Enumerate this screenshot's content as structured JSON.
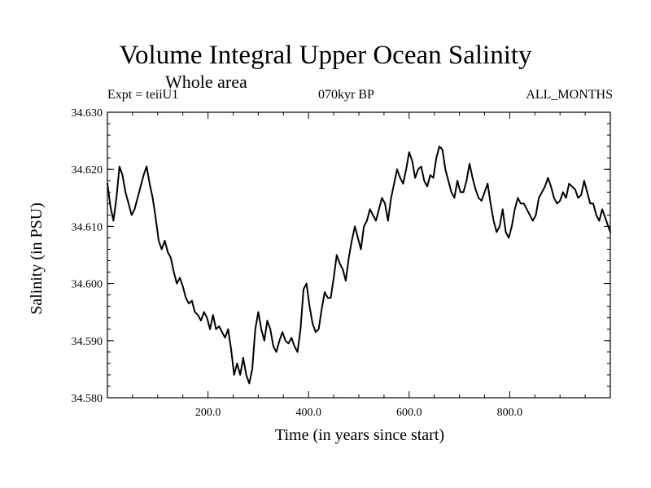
{
  "chart_data": {
    "type": "line",
    "title": "Volume Integral Upper Ocean Salinity",
    "subtitle": "Whole area",
    "expt_label": "Expt = teiiU1",
    "period_label": "070kyr BP",
    "months_label": "ALL_MONTHS",
    "xlabel": "Time (in years since start)",
    "ylabel": "Salinity (in PSU)",
    "xlim": [
      0,
      1000
    ],
    "ylim": [
      34.58,
      34.63
    ],
    "x_ticks": [
      200,
      400,
      600,
      800
    ],
    "x_tick_labels": [
      "200.0",
      "400.0",
      "600.0",
      "800.0"
    ],
    "y_ticks": [
      34.58,
      34.59,
      34.6,
      34.61,
      34.62,
      34.63
    ],
    "y_tick_labels": [
      "34.580",
      "34.590",
      "34.600",
      "34.610",
      "34.620",
      "34.630"
    ],
    "grid": false,
    "line_color": "#000000",
    "series": [
      {
        "x": [
          0,
          6,
          12,
          18,
          24,
          30,
          36,
          42,
          48,
          54,
          60,
          66,
          72,
          78,
          84,
          90,
          96,
          102,
          108,
          114,
          120,
          126,
          132,
          138,
          144,
          150,
          156,
          162,
          168,
          174,
          180,
          186,
          192,
          198,
          204,
          210,
          216,
          222,
          228,
          234,
          240,
          246,
          252,
          258,
          264,
          270,
          276,
          282,
          288,
          294,
          300,
          306,
          312,
          318,
          324,
          330,
          336,
          342,
          348,
          354,
          360,
          366,
          372,
          378,
          384,
          390,
          396,
          402,
          408,
          414,
          420,
          426,
          432,
          438,
          444,
          450,
          456,
          462,
          468,
          474,
          480,
          486,
          492,
          498,
          504,
          510,
          516,
          522,
          528,
          534,
          540,
          546,
          552,
          558,
          564,
          570,
          576,
          582,
          588,
          594,
          600,
          606,
          612,
          618,
          624,
          630,
          636,
          642,
          648,
          654,
          660,
          666,
          672,
          678,
          684,
          690,
          696,
          702,
          708,
          714,
          720,
          726,
          732,
          738,
          744,
          750,
          756,
          762,
          768,
          774,
          780,
          786,
          792,
          798,
          804,
          810,
          816,
          822,
          828,
          834,
          840,
          846,
          852,
          858,
          864,
          870,
          876,
          882,
          888,
          894,
          900,
          906,
          912,
          918,
          924,
          930,
          936,
          942,
          948,
          954,
          960,
          966,
          972,
          978,
          984,
          990,
          996,
          1000
        ],
        "values": [
          34.6175,
          34.6135,
          34.611,
          34.615,
          34.6205,
          34.619,
          34.616,
          34.614,
          34.612,
          34.613,
          34.615,
          34.617,
          34.619,
          34.6205,
          34.6175,
          34.615,
          34.6115,
          34.6075,
          34.606,
          34.6075,
          34.6055,
          34.6045,
          34.602,
          34.6,
          34.601,
          34.5995,
          34.5975,
          34.5965,
          34.597,
          34.595,
          34.5945,
          34.5935,
          34.595,
          34.594,
          34.592,
          34.5945,
          34.592,
          34.5925,
          34.5915,
          34.5905,
          34.592,
          34.5885,
          34.584,
          34.586,
          34.584,
          34.587,
          34.584,
          34.5825,
          34.585,
          34.592,
          34.595,
          34.592,
          34.59,
          34.5935,
          34.592,
          34.589,
          34.588,
          34.59,
          34.5915,
          34.59,
          34.5895,
          34.5905,
          34.589,
          34.588,
          34.592,
          34.599,
          34.6,
          34.596,
          34.593,
          34.5915,
          34.592,
          34.5955,
          34.5985,
          34.5975,
          34.5975,
          34.601,
          34.605,
          34.6035,
          34.6025,
          34.6005,
          34.6045,
          34.6075,
          34.61,
          34.608,
          34.606,
          34.61,
          34.611,
          34.613,
          34.612,
          34.611,
          34.613,
          34.615,
          34.614,
          34.611,
          34.615,
          34.6175,
          34.62,
          34.6185,
          34.6175,
          34.62,
          34.623,
          34.6215,
          34.6185,
          34.62,
          34.6205,
          34.618,
          34.617,
          34.619,
          34.6185,
          34.622,
          34.624,
          34.6235,
          34.62,
          34.618,
          34.616,
          34.615,
          34.618,
          34.616,
          34.616,
          34.618,
          34.621,
          34.6185,
          34.6165,
          34.615,
          34.6145,
          34.616,
          34.6175,
          34.614,
          34.611,
          34.609,
          34.61,
          34.613,
          34.609,
          34.608,
          34.61,
          34.613,
          34.615,
          34.614,
          34.614,
          34.613,
          34.612,
          34.611,
          34.612,
          34.615,
          34.616,
          34.617,
          34.6185,
          34.617,
          34.615,
          34.614,
          34.6145,
          34.616,
          34.615,
          34.6175,
          34.617,
          34.6165,
          34.615,
          34.6155,
          34.618,
          34.616,
          34.614,
          34.614,
          34.612,
          34.611,
          34.613,
          34.6115,
          34.61,
          34.609
        ]
      }
    ]
  }
}
